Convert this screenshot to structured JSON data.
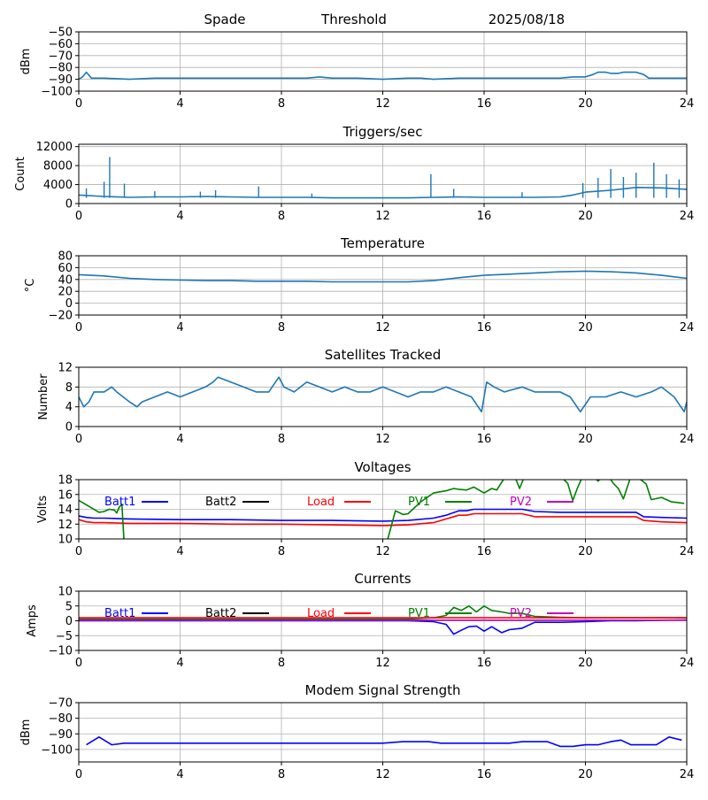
{
  "header": {
    "site": "Spade",
    "mode": "Threshold",
    "date": "2025/08/18"
  },
  "chart_data": [
    {
      "type": "line",
      "title": "",
      "ylabel": "dBm",
      "xlim": [
        0,
        24
      ],
      "ylim": [
        -100,
        -50
      ],
      "xticks": [
        0,
        4,
        8,
        12,
        16,
        20,
        24
      ],
      "yticks": [
        -100,
        -90,
        -80,
        -70,
        -60,
        -50
      ],
      "grid": true,
      "series": [
        {
          "color": "#1f77b4",
          "x": [
            0,
            0.15,
            0.3,
            0.5,
            1,
            2,
            3,
            4,
            6,
            7,
            8,
            9,
            9.5,
            10,
            11,
            12,
            13,
            13.5,
            14,
            15,
            16,
            17,
            18,
            19,
            19.5,
            20,
            20.3,
            20.5,
            20.8,
            21,
            21.3,
            21.5,
            21.8,
            22,
            22.3,
            22.5,
            23,
            23.5,
            24
          ],
          "y": [
            -90,
            -88,
            -84,
            -89,
            -89,
            -90,
            -89,
            -89,
            -89,
            -89,
            -89,
            -89,
            -88,
            -89,
            -89,
            -90,
            -89,
            -89,
            -90,
            -89,
            -89,
            -89,
            -89,
            -89,
            -88,
            -88,
            -86,
            -84,
            -84,
            -85,
            -85,
            -84,
            -84,
            -84,
            -86,
            -89,
            -89,
            -89,
            -89
          ]
        }
      ]
    },
    {
      "type": "line",
      "title": "Triggers/sec",
      "ylabel": "Count",
      "xlim": [
        0,
        24
      ],
      "ylim": [
        0,
        12500
      ],
      "xticks": [
        0,
        4,
        8,
        12,
        16,
        20,
        24
      ],
      "yticks": [
        0,
        4000,
        8000,
        12000
      ],
      "grid": true,
      "spikes": [
        [
          0.3,
          3200
        ],
        [
          1.0,
          4600
        ],
        [
          1.22,
          9800
        ],
        [
          1.8,
          4200
        ],
        [
          3.0,
          2600
        ],
        [
          4.8,
          2500
        ],
        [
          5.4,
          2800
        ],
        [
          7.1,
          3600
        ],
        [
          9.2,
          2100
        ],
        [
          13.9,
          6200
        ],
        [
          14.8,
          3100
        ],
        [
          17.5,
          2400
        ],
        [
          19.9,
          4300
        ],
        [
          20.5,
          5400
        ],
        [
          21.0,
          7300
        ],
        [
          21.5,
          5600
        ],
        [
          22.0,
          6500
        ],
        [
          22.7,
          8600
        ],
        [
          23.2,
          6200
        ],
        [
          23.7,
          5100
        ]
      ],
      "series": [
        {
          "color": "#1f77b4",
          "x": [
            0,
            1,
            2,
            3,
            4,
            5,
            6,
            7,
            8,
            9,
            10,
            11,
            12,
            13,
            14,
            15,
            16,
            17,
            18,
            19,
            19.5,
            20,
            21,
            22,
            23,
            24
          ],
          "y": [
            1800,
            1500,
            1300,
            1400,
            1400,
            1500,
            1400,
            1300,
            1300,
            1300,
            1200,
            1200,
            1200,
            1200,
            1300,
            1400,
            1300,
            1300,
            1300,
            1400,
            1800,
            2400,
            2800,
            3400,
            3300,
            3000
          ]
        }
      ]
    },
    {
      "type": "line",
      "title": "Temperature",
      "ylabel": "°C",
      "xlim": [
        0,
        24
      ],
      "ylim": [
        -20,
        80
      ],
      "xticks": [
        0,
        4,
        8,
        12,
        16,
        20,
        24
      ],
      "yticks": [
        -20,
        0,
        20,
        40,
        60,
        80
      ],
      "grid": true,
      "series": [
        {
          "color": "#1f77b4",
          "x": [
            0,
            1,
            2,
            3,
            4,
            5,
            6,
            7,
            8,
            9,
            10,
            11,
            12,
            13,
            14,
            15,
            16,
            17,
            18,
            19,
            20,
            21,
            22,
            23,
            24
          ],
          "y": [
            48,
            46,
            42,
            40,
            39,
            38,
            38,
            37,
            37,
            37,
            36,
            36,
            36,
            36,
            38,
            43,
            47,
            49,
            51,
            53,
            54,
            53,
            51,
            47,
            42
          ]
        }
      ]
    },
    {
      "type": "line",
      "title": "Satellites Tracked",
      "ylabel": "Number",
      "xlim": [
        0,
        24
      ],
      "ylim": [
        0,
        12
      ],
      "xticks": [
        0,
        4,
        8,
        12,
        16,
        20,
        24
      ],
      "yticks": [
        0,
        4,
        8,
        12
      ],
      "grid": true,
      "series": [
        {
          "color": "#1f77b4",
          "x": [
            0,
            0.2,
            0.4,
            0.6,
            1.0,
            1.3,
            1.5,
            2.0,
            2.3,
            2.5,
            3.0,
            3.5,
            4.0,
            4.5,
            5.0,
            5.3,
            5.5,
            6.0,
            6.5,
            7.0,
            7.5,
            7.9,
            8.1,
            8.5,
            9.0,
            9.5,
            10.0,
            10.5,
            11.0,
            11.5,
            12.0,
            12.5,
            13.0,
            13.5,
            14.0,
            14.5,
            15.0,
            15.5,
            15.9,
            16.1,
            16.4,
            16.8,
            17.5,
            18.0,
            18.5,
            19.0,
            19.4,
            19.8,
            20.2,
            20.8,
            21.4,
            22.0,
            22.6,
            23.0,
            23.5,
            23.9,
            24.0
          ],
          "y": [
            6,
            4,
            5,
            7,
            7,
            8,
            7,
            5,
            4,
            5,
            6,
            7,
            6,
            7,
            8,
            9,
            10,
            9,
            8,
            7,
            7,
            10,
            8,
            7,
            9,
            8,
            7,
            8,
            7,
            7,
            8,
            7,
            6,
            7,
            7,
            8,
            7,
            6,
            3,
            9,
            8,
            7,
            8,
            7,
            7,
            7,
            6,
            3,
            6,
            6,
            7,
            6,
            7,
            8,
            6,
            3,
            5
          ]
        }
      ]
    },
    {
      "type": "line",
      "title": "Voltages",
      "ylabel": "Volts",
      "xlim": [
        0,
        24
      ],
      "ylim": [
        10,
        18
      ],
      "xticks": [
        0,
        4,
        8,
        12,
        16,
        20,
        24
      ],
      "yticks": [
        10,
        12,
        14,
        16,
        18
      ],
      "grid": true,
      "legend": {
        "placement": "top",
        "entries": [
          "Batt1",
          "Batt2",
          "Load",
          "PV1",
          "PV2"
        ],
        "colors": [
          "#0000ff",
          "#000000",
          "#ff0000",
          "#008000",
          "#bf00bf"
        ]
      },
      "series": [
        {
          "name": "Batt1",
          "color": "#0000ff",
          "x": [
            0,
            0.3,
            0.6,
            1,
            2,
            4,
            6,
            8,
            10,
            12,
            13,
            14,
            14.5,
            15,
            15.3,
            15.6,
            16,
            17,
            17.5,
            18,
            19,
            20,
            21,
            22,
            22.3,
            23,
            24
          ],
          "y": [
            13.1,
            12.9,
            12.8,
            12.8,
            12.7,
            12.6,
            12.6,
            12.5,
            12.5,
            12.4,
            12.5,
            12.8,
            13.2,
            13.8,
            13.8,
            14.0,
            14.0,
            14.0,
            14.0,
            13.7,
            13.6,
            13.6,
            13.6,
            13.6,
            13.0,
            12.9,
            12.8
          ]
        },
        {
          "name": "Load",
          "color": "#ff0000",
          "x": [
            0,
            0.3,
            0.6,
            1,
            2,
            4,
            6,
            8,
            10,
            12,
            13,
            14,
            14.5,
            15,
            15.3,
            15.6,
            16,
            17,
            17.5,
            18,
            19,
            20,
            21,
            22,
            22.3,
            23,
            24
          ],
          "y": [
            12.6,
            12.3,
            12.2,
            12.2,
            12.1,
            12.1,
            12.0,
            12.0,
            11.9,
            11.8,
            11.9,
            12.2,
            12.7,
            13.2,
            13.2,
            13.4,
            13.4,
            13.4,
            13.4,
            13.0,
            13.0,
            13.0,
            13.0,
            13.0,
            12.5,
            12.3,
            12.2
          ]
        },
        {
          "name": "PV1",
          "color": "#008000",
          "x": [
            0,
            0.5,
            0.8,
            1.0,
            1.2,
            1.4,
            1.5,
            1.6,
            1.7,
            1.8,
            12.0,
            12.2,
            12.5,
            12.8,
            13.0,
            13.5,
            14.0,
            14.5,
            14.8,
            15.0,
            15.3,
            15.6,
            16.0,
            16.3,
            16.5,
            16.8,
            17.0,
            17.2,
            17.4,
            17.6,
            17.8,
            18.0,
            18.5,
            18.8,
            19.0,
            19.3,
            19.5,
            19.7,
            19.9,
            20.1,
            20.3,
            20.5,
            20.7,
            20.9,
            21.1,
            21.3,
            21.5,
            21.8,
            22.0,
            22.4,
            22.6,
            23.0,
            23.4,
            23.9
          ],
          "y": [
            15.2,
            14.2,
            13.6,
            13.7,
            14.0,
            13.9,
            13.5,
            14.3,
            14.7,
            9.0,
            9.0,
            10.0,
            13.8,
            13.3,
            13.4,
            15.0,
            16.2,
            16.5,
            16.8,
            16.7,
            16.6,
            17.0,
            16.2,
            16.8,
            16.6,
            18.2,
            18.5,
            18.5,
            16.8,
            18.5,
            18.5,
            18.5,
            18.5,
            18.5,
            18.5,
            17.5,
            15.2,
            17.0,
            18.5,
            18.5,
            18.5,
            17.8,
            18.5,
            18.5,
            17.5,
            16.8,
            15.4,
            18.5,
            18.5,
            17.4,
            15.3,
            15.6,
            15.0,
            14.8
          ]
        }
      ]
    },
    {
      "type": "line",
      "title": "Currents",
      "ylabel": "Amps",
      "xlim": [
        0,
        24
      ],
      "ylim": [
        -10,
        10
      ],
      "xticks": [
        0,
        4,
        8,
        12,
        16,
        20,
        24
      ],
      "yticks": [
        -10,
        -5,
        0,
        5,
        10
      ],
      "grid": true,
      "legend": {
        "placement": "top",
        "entries": [
          "Batt1",
          "Batt2",
          "Load",
          "PV1",
          "PV2"
        ],
        "colors": [
          "#0000ff",
          "#000000",
          "#ff0000",
          "#008000",
          "#bf00bf"
        ]
      },
      "series": [
        {
          "name": "PV1",
          "color": "#008000",
          "x": [
            0,
            4,
            8,
            12,
            13,
            14,
            14.5,
            14.8,
            15.1,
            15.4,
            15.7,
            16.0,
            16.3,
            16.7,
            17.0,
            17.5,
            18.0,
            19.0,
            20.0,
            21.0,
            22.0,
            23.0,
            24.0
          ],
          "y": [
            0.5,
            0.5,
            0.5,
            0.5,
            0.6,
            1.0,
            1.8,
            4.5,
            3.5,
            5.0,
            3.0,
            5.0,
            3.5,
            3.0,
            2.5,
            2.5,
            1.5,
            1.2,
            1.0,
            1.0,
            1.0,
            1.0,
            1.0
          ]
        },
        {
          "name": "Load",
          "color": "#ff0000",
          "x": [
            0,
            4,
            8,
            12,
            16,
            20,
            24
          ],
          "y": [
            1.0,
            1.0,
            1.0,
            1.0,
            1.0,
            1.0,
            1.0
          ]
        },
        {
          "name": "Batt1",
          "color": "#0000ff",
          "x": [
            0,
            4,
            8,
            12,
            13,
            14,
            14.5,
            14.8,
            15.1,
            15.4,
            15.7,
            16.0,
            16.3,
            16.7,
            17.0,
            17.5,
            18.0,
            19.0,
            20.0,
            21.0,
            22.0,
            23.0,
            24.0
          ],
          "y": [
            0,
            0,
            0,
            0,
            0,
            -0.3,
            -1.2,
            -4.5,
            -3.2,
            -2.0,
            -1.8,
            -3.5,
            -2.0,
            -4.0,
            -3.0,
            -2.5,
            -0.5,
            -0.5,
            -0.3,
            0,
            0,
            0.2,
            0.3
          ]
        },
        {
          "name": "PV2",
          "color": "#bf00bf",
          "x": [
            0,
            12,
            24
          ],
          "y": [
            0.2,
            0.2,
            0.2
          ]
        }
      ]
    },
    {
      "type": "line",
      "title": "Modem Signal Strength",
      "ylabel": "dBm",
      "xlim": [
        0,
        24
      ],
      "ylim": [
        -108,
        -70
      ],
      "xticks": [
        0,
        4,
        8,
        12,
        16,
        20,
        24
      ],
      "yticks": [
        -100,
        -90,
        -80,
        -70
      ],
      "grid": true,
      "series": [
        {
          "color": "#0000ff",
          "x": [
            0.3,
            0.8,
            1.3,
            1.8,
            4,
            8,
            12,
            12.8,
            13.8,
            14.3,
            16,
            17,
            17.5,
            18.5,
            19,
            19.5,
            20,
            20.5,
            21,
            21.4,
            21.8,
            22.3,
            22.8,
            23.3,
            23.8
          ],
          "y": [
            -97,
            -92,
            -97,
            -96,
            -96,
            -96,
            -96,
            -95,
            -95,
            -96,
            -96,
            -96,
            -95,
            -95,
            -98,
            -98,
            -97,
            -97,
            -95,
            -94,
            -97,
            -97,
            -97,
            -92,
            -94
          ]
        }
      ]
    }
  ]
}
